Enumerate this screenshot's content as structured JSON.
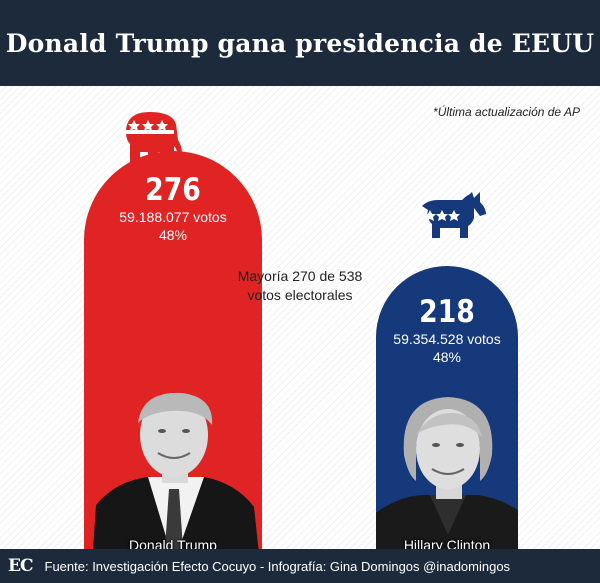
{
  "header": {
    "title": "Donald Trump gana presidencia de EEUU"
  },
  "note": "*Última actualización de AP",
  "majority": {
    "line1": "Mayoría 270 de 538",
    "line2": "votos electorales"
  },
  "colors": {
    "republican": "#e02424",
    "democrat": "#15397a",
    "header_bg": "#1c2a3c"
  },
  "chart_data": {
    "type": "bar",
    "categories": [
      "Donald Trump",
      "Hillary Clinton"
    ],
    "values": [
      276,
      218
    ],
    "value_labels": [
      "276",
      "218"
    ],
    "popular_votes": [
      "59.188.077 votos",
      "59.354.528 votos"
    ],
    "percentages": [
      "48%",
      "48%"
    ],
    "icons": [
      "republican-elephant-icon",
      "democrat-donkey-icon"
    ],
    "title": "Donald Trump gana presidencia de EEUU"
  },
  "footer": {
    "logo": "EC",
    "credit": "Fuente: Investigación Efecto Cocuyo - Infografía: Gina Domingos @inadomingos"
  }
}
